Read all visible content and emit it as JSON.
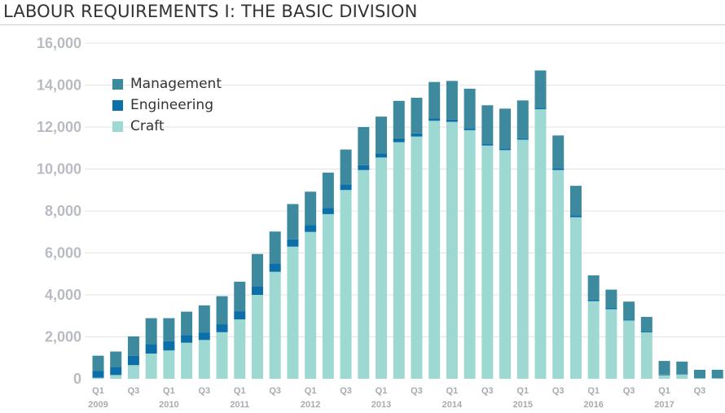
{
  "chart_data": {
    "type": "bar",
    "stacked": true,
    "title": "LABOUR REQUIREMENTS I: THE BASIC DIVISION",
    "xlabel": "",
    "ylabel": "",
    "ylim": [
      0,
      16000
    ],
    "yticks": [
      0,
      2000,
      4000,
      6000,
      8000,
      10000,
      12000,
      14000,
      16000
    ],
    "ytick_labels": [
      "0",
      "2,000",
      "4,000",
      "6,000",
      "8,000",
      "10,000",
      "12,000",
      "14,000",
      "16,000"
    ],
    "grid": true,
    "legend_position": "top-left",
    "quarter_labels": [
      "Q1",
      "",
      "Q3",
      "",
      "Q1",
      "",
      "Q3",
      "",
      "Q1",
      "",
      "Q3",
      "",
      "Q1",
      "",
      "Q3",
      "",
      "Q1",
      "",
      "Q3",
      "",
      "Q1",
      "",
      "Q3",
      "",
      "Q1",
      "",
      "Q3",
      "",
      "Q1",
      "",
      "Q3",
      "",
      "Q1",
      "",
      "Q3",
      ""
    ],
    "years": [
      {
        "label": "2009",
        "index": 0
      },
      {
        "label": "2010",
        "index": 4
      },
      {
        "label": "2011",
        "index": 8
      },
      {
        "label": "2012",
        "index": 12
      },
      {
        "label": "2013",
        "index": 16
      },
      {
        "label": "2014",
        "index": 20
      },
      {
        "label": "2015",
        "index": 24
      },
      {
        "label": "2016",
        "index": 28
      },
      {
        "label": "2017",
        "index": 32
      }
    ],
    "series": [
      {
        "name": "Craft",
        "color": "#9dd9d2",
        "values": [
          50,
          180,
          650,
          1200,
          1350,
          1720,
          1850,
          2220,
          2830,
          4000,
          5100,
          6300,
          7000,
          7850,
          9000,
          9950,
          10550,
          11280,
          11550,
          12300,
          12250,
          11850,
          11120,
          10900,
          11400,
          12850,
          9950,
          7700,
          3700,
          3320,
          2780,
          2210,
          170,
          200,
          20,
          20
        ]
      },
      {
        "name": "Engineering",
        "color": "#0d6fa8",
        "values": [
          320,
          380,
          440,
          460,
          440,
          370,
          360,
          380,
          390,
          420,
          400,
          350,
          320,
          300,
          260,
          230,
          200,
          180,
          150,
          120,
          110,
          100,
          90,
          80,
          70,
          70,
          100,
          100,
          80,
          60,
          50,
          40,
          30,
          20,
          10,
          10
        ]
      },
      {
        "name": "Management",
        "color": "#3d8a9e",
        "values": [
          730,
          740,
          930,
          1230,
          1100,
          1110,
          1290,
          1340,
          1410,
          1530,
          1520,
          1680,
          1600,
          1680,
          1670,
          1820,
          1750,
          1790,
          1700,
          1730,
          1840,
          1880,
          1830,
          1900,
          1800,
          1780,
          1550,
          1400,
          1150,
          870,
          850,
          700,
          650,
          600,
          400,
          400
        ]
      }
    ],
    "legend": [
      "Management",
      "Engineering",
      "Craft"
    ]
  }
}
